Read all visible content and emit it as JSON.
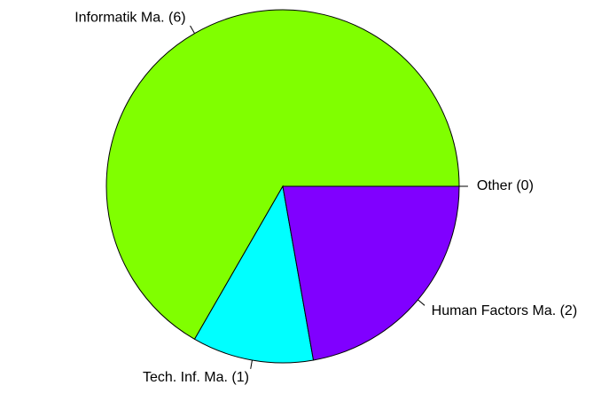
{
  "chart_data": {
    "type": "pie",
    "categories": [
      "Informatik Ma. (6)",
      "Tech. Inf. Ma. (1)",
      "Human Factors Ma. (2)",
      "Other (0)"
    ],
    "values": [
      6,
      1,
      2,
      0
    ],
    "colors": [
      "#80FF00",
      "#00FFFF",
      "#8000FF",
      "#FF0000"
    ]
  }
}
